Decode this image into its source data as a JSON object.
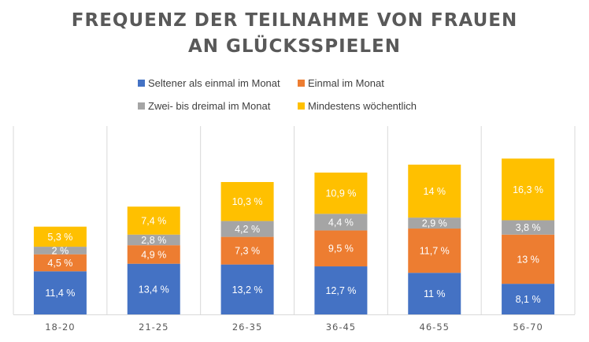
{
  "chart_data": {
    "type": "bar",
    "stacked": true,
    "title_line1": "FREQUENZ DER TEILNAHME VON FRAUEN",
    "title_line2": "AN GLÜCKSSPIELEN",
    "xlabel": "",
    "ylabel": "",
    "ylim": [
      0,
      45
    ],
    "legend_position": "top",
    "categories": [
      "18-20",
      "21-25",
      "26-35",
      "36-45",
      "46-55",
      "56-70"
    ],
    "series": [
      {
        "name": "Seltener als einmal im Monat",
        "color": "#4472C4",
        "values": [
          11.4,
          13.4,
          13.2,
          12.7,
          11,
          8.1
        ],
        "labels": [
          "11,4 %",
          "13,4 %",
          "13,2 %",
          "12,7 %",
          "11 %",
          "8,1 %"
        ]
      },
      {
        "name": "Einmal im Monat",
        "color": "#ED7D31",
        "values": [
          4.5,
          4.9,
          7.3,
          9.5,
          11.7,
          13
        ],
        "labels": [
          "4,5 %",
          "4,9 %",
          "7,3 %",
          "9,5 %",
          "11,7 %",
          "13 %"
        ]
      },
      {
        "name": "Zwei- bis dreimal im Monat",
        "color": "#A5A5A5",
        "values": [
          2,
          2.8,
          4.2,
          4.4,
          2.9,
          3.8
        ],
        "labels": [
          "2 %",
          "2,8 %",
          "4,2 %",
          "4,4 %",
          "2,9 %",
          "3,8 %"
        ]
      },
      {
        "name": "Mindestens wöchentlich",
        "color": "#FFC000",
        "values": [
          5.3,
          7.4,
          10.3,
          10.9,
          14,
          16.3
        ],
        "labels": [
          "5,3 %",
          "7,4 %",
          "10,3 %",
          "10,9 %",
          "14 %",
          "16,3 %"
        ]
      }
    ]
  }
}
